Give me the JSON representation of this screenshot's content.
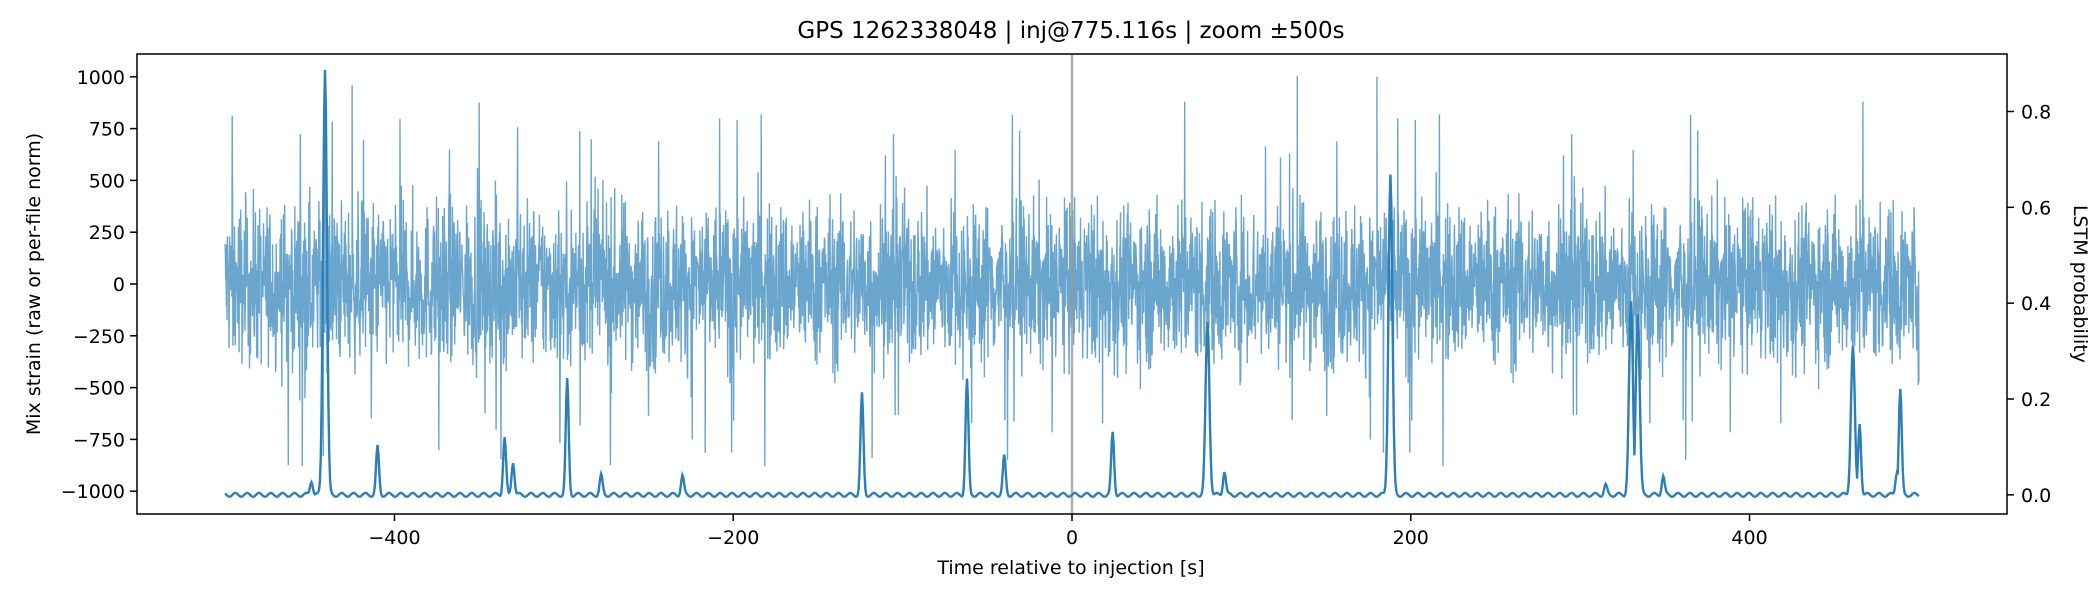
{
  "chart_data": {
    "type": "line",
    "title": "GPS 1262338048 | inj@775.116s | zoom ±500s",
    "xlabel": "Time relative to injection [s]",
    "ylabel": "Mix strain (raw or per-file norm)",
    "y2label": "LSTM probability",
    "xlim": [
      -552,
      552
    ],
    "ylim": [
      -1110,
      1110
    ],
    "y2lim": [
      -0.04,
      0.92
    ],
    "x_ticks": [
      -400,
      -200,
      0,
      200,
      400
    ],
    "y_ticks": [
      -1000,
      -750,
      -500,
      -250,
      0,
      250,
      500,
      750,
      1000
    ],
    "y2_ticks": [
      0.0,
      0.2,
      0.4,
      0.6,
      0.8
    ],
    "x_tick_labels": [
      "−400",
      "−200",
      "0",
      "200",
      "400"
    ],
    "y_tick_labels": [
      "−1000",
      "−750",
      "−500",
      "−250",
      "0",
      "250",
      "500",
      "750",
      "1000"
    ],
    "y2_tick_labels": [
      "0.0",
      "0.2",
      "0.4",
      "0.6",
      "0.8"
    ],
    "injection_marker_x": 0,
    "grid": false,
    "legend": "none",
    "strain_envelope": {
      "description_unit": "strain",
      "x_range": [
        -500,
        500
      ],
      "typical_upper": 550,
      "typical_lower": -550,
      "peak_excursions": [
        {
          "x": -441,
          "y": 1005
        },
        {
          "x": -425,
          "y": 960
        },
        {
          "x": 133,
          "y": 1005
        },
        {
          "x": 180,
          "y": 1000
        },
        {
          "x": -442,
          "y": -830
        },
        {
          "x": -118,
          "y": -840
        }
      ]
    },
    "series": [
      {
        "axis": "y",
        "color": "#62a0ca",
        "kind": "dense_noise"
      },
      {
        "axis": "y2",
        "color": "#2c7fb8",
        "baseline": 0.0,
        "peaks": [
          {
            "x": -449,
            "y": 0.03
          },
          {
            "x": -441,
            "y": 0.89
          },
          {
            "x": -410,
            "y": 0.1
          },
          {
            "x": -335,
            "y": 0.12
          },
          {
            "x": -330,
            "y": 0.07
          },
          {
            "x": -298,
            "y": 0.24
          },
          {
            "x": -278,
            "y": 0.04
          },
          {
            "x": -230,
            "y": 0.04
          },
          {
            "x": -124,
            "y": 0.21
          },
          {
            "x": -62,
            "y": 0.24
          },
          {
            "x": -40,
            "y": 0.08
          },
          {
            "x": 24,
            "y": 0.13
          },
          {
            "x": 80,
            "y": 0.36
          },
          {
            "x": 90,
            "y": 0.05
          },
          {
            "x": 188,
            "y": 0.67
          },
          {
            "x": 315,
            "y": 0.02
          },
          {
            "x": 330,
            "y": 0.4
          },
          {
            "x": 334,
            "y": 0.38
          },
          {
            "x": 349,
            "y": 0.04
          },
          {
            "x": 461,
            "y": 0.31
          },
          {
            "x": 465,
            "y": 0.15
          },
          {
            "x": 489,
            "y": 0.22
          },
          {
            "x": 487,
            "y": 0.05
          }
        ]
      }
    ]
  }
}
